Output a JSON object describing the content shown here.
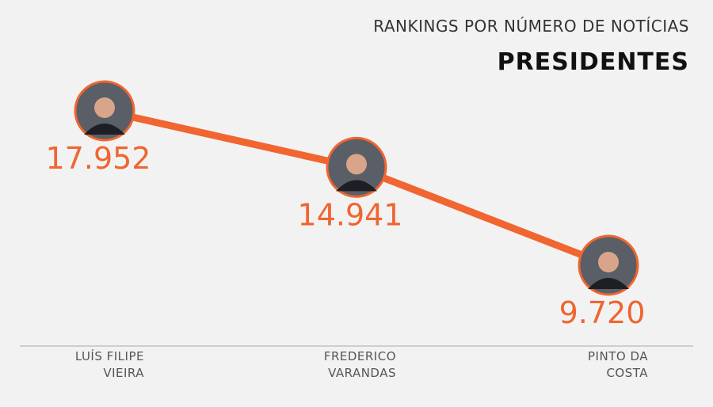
{
  "chart_data": {
    "type": "line",
    "subtitle": "RANKINGS POR NÚMERO DE NOTÍCIAS",
    "title": "PRESIDENTES",
    "categories": [
      "LUÍS FILIPE VIEIRA",
      "FREDERICO VARANDAS",
      "PINTO DA COSTA"
    ],
    "values": [
      17952,
      14941,
      9720
    ],
    "value_labels": [
      "17.952",
      "14.941",
      "9.720"
    ],
    "color": "#f06530"
  }
}
